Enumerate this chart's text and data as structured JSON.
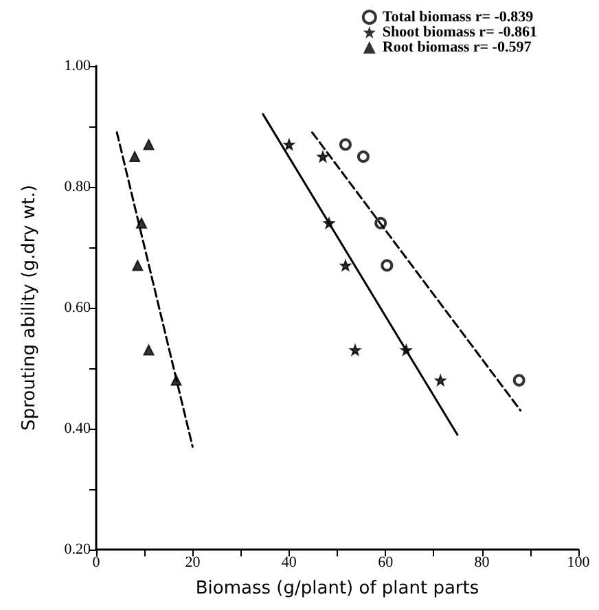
{
  "chart_data": {
    "type": "scatter",
    "xlabel": "Biomass (g/plant) of plant parts",
    "ylabel": "Sprouting ability (g.dry wt.)",
    "xlim": [
      0,
      100
    ],
    "ylim": [
      0.2,
      1.0
    ],
    "xticks": [
      0,
      {
        "value": 10,
        "label": null
      },
      20,
      {
        "value": 30,
        "label": null
      },
      40,
      {
        "value": 50,
        "label": null
      },
      60,
      {
        "value": 70,
        "label": null
      },
      80,
      {
        "value": 90,
        "label": null
      },
      100
    ],
    "yticks": [
      {
        "value": 0.2,
        "label": "0.20"
      },
      {
        "value": 0.3,
        "label": null
      },
      {
        "value": 0.4,
        "label": "0.40"
      },
      {
        "value": 0.5,
        "label": null
      },
      {
        "value": 0.6,
        "label": "0.60"
      },
      {
        "value": 0.7,
        "label": null
      },
      {
        "value": 0.8,
        "label": "0.80"
      },
      {
        "value": 0.9,
        "label": null
      },
      {
        "value": 1.0,
        "label": "1.00"
      }
    ],
    "legend": "top right",
    "grid": false,
    "series": [
      {
        "name": "Total biomass r= -0.839",
        "type": "scatter",
        "marker": "circle",
        "color": "#000000",
        "x": [
          51.7,
          55.4,
          59,
          60.3,
          87.7
        ],
        "values": [
          0.87,
          0.85,
          0.74,
          0.67,
          0.48
        ]
      },
      {
        "name": "Shoot biomass r= -0.861",
        "type": "scatter",
        "marker": "star",
        "color": "#000000",
        "x": [
          40,
          47,
          48.3,
          51.7,
          53.7,
          64.3,
          71.4
        ],
        "values": [
          0.87,
          0.85,
          0.74,
          0.67,
          0.53,
          0.53,
          0.48
        ]
      },
      {
        "name": "Root biomass r= -0.597",
        "type": "scatter",
        "marker": "triangle",
        "color": "#000000",
        "x": [
          8,
          10.9,
          9.4,
          8.6,
          10.9,
          16.6
        ],
        "values": [
          0.85,
          0.87,
          0.74,
          0.67,
          0.53,
          0.48
        ]
      },
      {
        "type": "line",
        "marker": "none",
        "line_style": "dashed",
        "color": "#000000",
        "x": [
          44.8,
          88
        ],
        "values": [
          0.89,
          0.43
        ]
      },
      {
        "type": "line",
        "marker": "none",
        "line_style": "solid",
        "color": "#000000",
        "x": [
          34.6,
          74.9
        ],
        "values": [
          0.92,
          0.39
        ]
      },
      {
        "type": "line",
        "marker": "none",
        "line_style": "dashed",
        "color": "#000000",
        "x": [
          4.3,
          20
        ],
        "values": [
          0.89,
          0.37
        ]
      }
    ]
  }
}
